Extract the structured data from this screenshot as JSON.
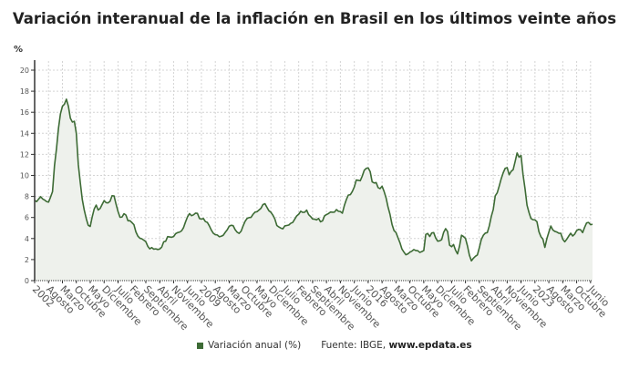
{
  "chart_data": {
    "type": "area",
    "title": "Variación interanual de la inflación en Brasil en los últimos veinte años",
    "ylabel": "%",
    "xlabel": "",
    "ylim": [
      0,
      20
    ],
    "yticks": [
      0,
      2,
      4,
      6,
      8,
      10,
      12,
      14,
      16,
      18,
      20
    ],
    "grid": true,
    "legend_placement": "bottom",
    "x_start": "2002-01",
    "x_end": "2025-06",
    "frequency": "monthly",
    "xtick_labels": [
      "2002",
      "Agosto",
      "Marzo",
      "Octubre",
      "Mayo",
      "Diciembre",
      "Julio",
      "Febrero",
      "Septiembre",
      "Abril",
      "Noviembre",
      "Junio",
      "2009",
      "Agosto",
      "Marzo",
      "Octubre",
      "Mayo",
      "Diciembre",
      "Julio",
      "Febrero",
      "Septiembre",
      "Abril",
      "Noviembre",
      "Junio",
      "2016",
      "Agosto",
      "Marzo",
      "Octubre",
      "Mayo",
      "Diciembre",
      "Julio",
      "Febrero",
      "Septiembre",
      "Abril",
      "Noviembre",
      "Junio",
      "2023",
      "Agosto",
      "Marzo",
      "Octubre",
      "Junio"
    ],
    "series": [
      {
        "name": "Variación anual (%)",
        "color": "#3d6b35",
        "fill": "#eef1ec",
        "values": [
          7.62,
          7.51,
          7.75,
          7.98,
          7.77,
          7.66,
          7.51,
          7.46,
          7.93,
          8.45,
          10.93,
          12.53,
          14.47,
          15.85,
          16.57,
          16.77,
          17.24,
          16.57,
          15.43,
          15.07,
          15.14,
          13.98,
          11.02,
          9.3,
          7.71,
          6.69,
          5.89,
          5.26,
          5.15,
          6.06,
          6.81,
          7.18,
          6.71,
          6.86,
          7.24,
          7.6,
          7.41,
          7.39,
          7.54,
          8.07,
          8.05,
          7.27,
          6.57,
          6.02,
          6.04,
          6.36,
          6.22,
          5.69,
          5.7,
          5.51,
          5.32,
          4.63,
          4.23,
          4.03,
          3.97,
          3.84,
          3.7,
          3.26,
          3.02,
          3.14,
          2.99,
          3.02,
          2.96,
          3.0,
          3.18,
          3.69,
          3.74,
          4.18,
          4.15,
          4.12,
          4.19,
          4.46,
          4.56,
          4.61,
          4.73,
          5.04,
          5.58,
          6.06,
          6.37,
          6.17,
          6.25,
          6.41,
          6.39,
          5.9,
          5.84,
          5.9,
          5.61,
          5.53,
          5.2,
          4.8,
          4.5,
          4.36,
          4.34,
          4.17,
          4.22,
          4.31,
          4.59,
          4.83,
          5.17,
          5.26,
          5.22,
          4.84,
          4.6,
          4.49,
          4.7,
          5.2,
          5.63,
          5.91,
          5.99,
          6.01,
          6.3,
          6.51,
          6.55,
          6.71,
          6.87,
          7.23,
          7.31,
          6.97,
          6.64,
          6.5,
          6.22,
          5.85,
          5.24,
          5.1,
          4.99,
          4.92,
          5.2,
          5.24,
          5.28,
          5.45,
          5.53,
          5.84,
          6.15,
          6.31,
          6.59,
          6.49,
          6.5,
          6.7,
          6.27,
          6.09,
          5.86,
          5.84,
          5.77,
          5.91,
          5.59,
          5.68,
          6.15,
          6.28,
          6.37,
          6.52,
          6.5,
          6.51,
          6.75,
          6.59,
          6.56,
          6.41,
          7.14,
          7.7,
          8.13,
          8.17,
          8.47,
          8.89,
          9.56,
          9.53,
          9.49,
          9.93,
          10.48,
          10.67,
          10.71,
          10.36,
          9.39,
          9.28,
          9.32,
          8.84,
          8.74,
          8.97,
          8.48,
          7.87,
          6.99,
          6.29,
          5.35,
          4.76,
          4.57,
          4.08,
          3.6,
          3.0,
          2.71,
          2.46,
          2.54,
          2.7,
          2.8,
          2.95,
          2.86,
          2.84,
          2.68,
          2.76,
          2.86,
          4.39,
          4.48,
          4.19,
          4.53,
          4.56,
          4.05,
          3.75,
          3.78,
          3.89,
          4.58,
          4.94,
          4.66,
          3.37,
          3.22,
          3.43,
          2.89,
          2.54,
          3.27,
          4.31,
          4.19,
          4.01,
          3.3,
          2.4,
          1.88,
          2.13,
          2.31,
          2.44,
          3.14,
          3.92,
          4.31,
          4.52,
          4.56,
          5.2,
          6.1,
          6.76,
          8.06,
          8.35,
          8.99,
          9.68,
          10.25,
          10.67,
          10.74,
          10.06,
          10.38,
          10.54,
          11.3,
          12.13,
          11.73,
          11.89,
          10.07,
          8.73,
          7.17,
          6.47,
          5.9,
          5.79,
          5.77,
          5.6,
          4.65,
          4.18,
          3.94,
          3.16,
          3.99,
          4.61,
          5.19,
          4.82,
          4.68,
          4.62,
          4.51,
          4.5,
          3.93,
          3.69,
          3.93,
          4.23,
          4.5,
          4.24,
          4.42,
          4.76,
          4.87,
          4.83,
          4.56,
          5.06,
          5.48,
          5.53,
          5.32,
          5.35
        ]
      }
    ],
    "legend_label": "Variación anual (%)",
    "source_prefix": "Fuente: IBGE,",
    "source_site": "www.epdata.es"
  }
}
